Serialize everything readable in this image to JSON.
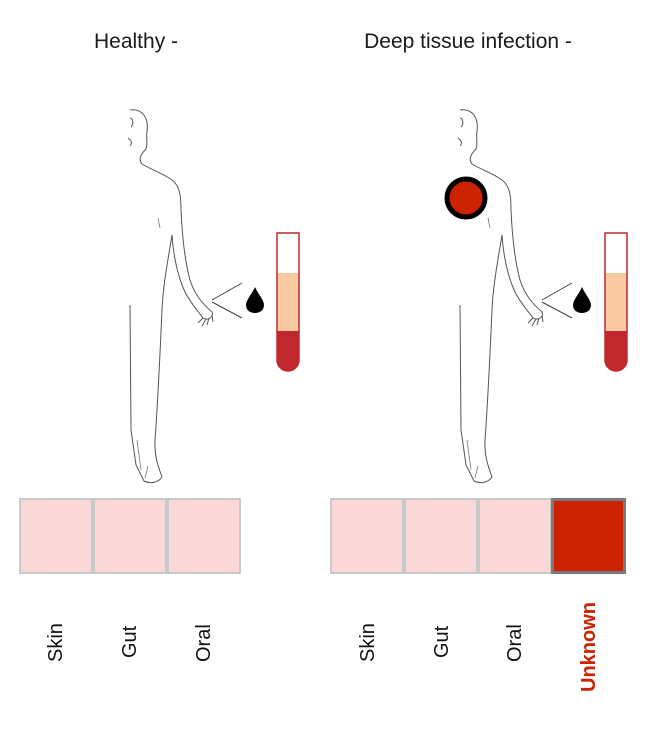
{
  "panels": {
    "healthy": {
      "title": "Healthy -",
      "sources": [
        {
          "label": "Skin",
          "highlighted": false
        },
        {
          "label": "Gut",
          "highlighted": false
        },
        {
          "label": "Oral",
          "highlighted": false
        }
      ]
    },
    "infection": {
      "title": "Deep tissue infection -",
      "sources": [
        {
          "label": "Skin",
          "highlighted": false
        },
        {
          "label": "Gut",
          "highlighted": false
        },
        {
          "label": "Oral",
          "highlighted": false
        },
        {
          "label": "Unknown",
          "highlighted": true
        }
      ]
    }
  },
  "colors": {
    "box_fill": "#fad8d8",
    "box_border": "#c9c9c9",
    "unknown_fill": "#cc2200",
    "unknown_border": "#7a7a7a",
    "unknown_label": "#cc2200",
    "infection_site": "#cc2200",
    "plasma": "#f8c8a0",
    "blood": "#c0282e",
    "tube_outline": "#c0282e"
  },
  "icons": [
    "human-body-outline-icon",
    "blood-drop-icon",
    "blood-tube-icon",
    "infection-site-icon"
  ]
}
